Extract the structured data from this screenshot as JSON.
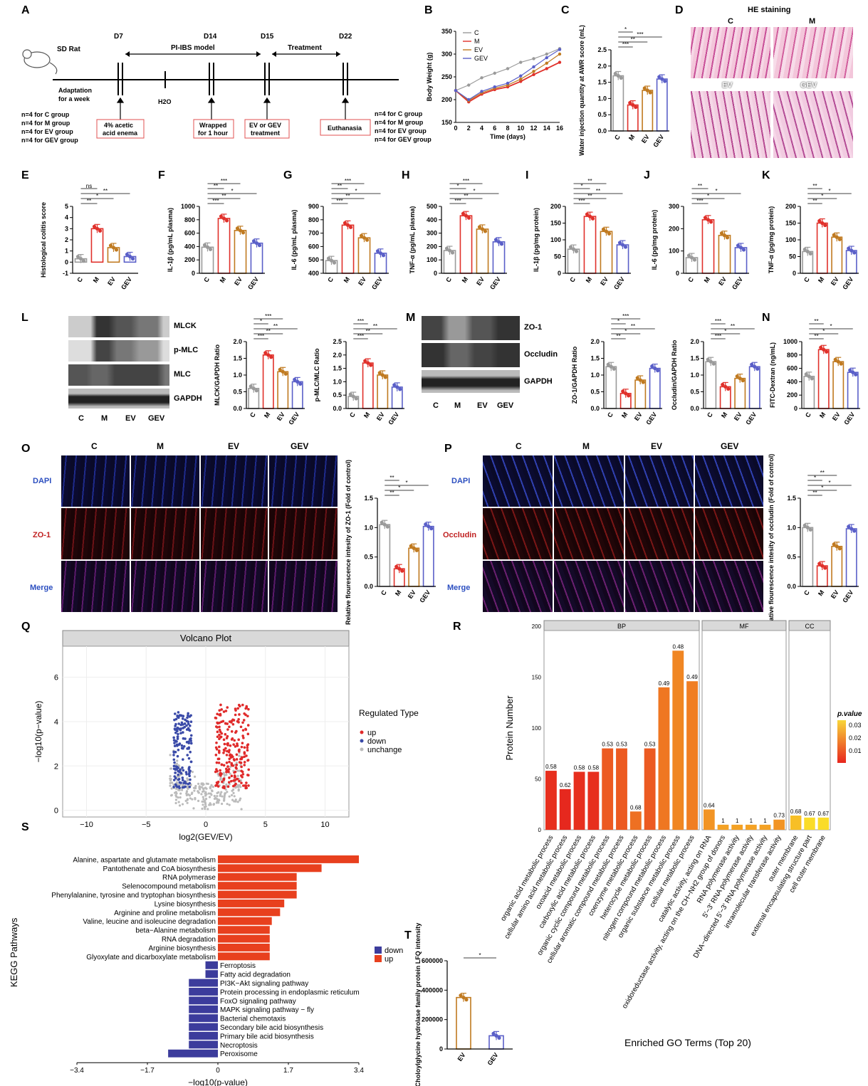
{
  "labels": {
    "A": "A",
    "B": "B",
    "C": "C",
    "D": "D",
    "E": "E",
    "F": "F",
    "G": "G",
    "H": "H",
    "I": "I",
    "J": "J",
    "K": "K",
    "L": "L",
    "M": "M",
    "N": "N",
    "O": "O",
    "P": "P",
    "Q": "Q",
    "R": "R",
    "S": "S",
    "T": "T"
  },
  "panelA": {
    "rat": "SD Rat",
    "d7": "D7",
    "d14": "D14",
    "d15": "D15",
    "d22": "D22",
    "model": "PI-IBS model",
    "treatment": "Treatment",
    "adapt1": "Adaptation",
    "adapt2": "for a week",
    "h2o": "H2O",
    "n1": "n=4 for C group",
    "n2": "n=4 for M group",
    "n3": "n=4 for EV group",
    "n4": "n=4 for GEV group",
    "box1a": "4% acetic",
    "box1b": "acid enema",
    "box2a": "Wrapped",
    "box2b": "for 1 hour",
    "box3a": "EV or GEV",
    "box3b": "treatment",
    "box4": "Euthanasia",
    "m1": "n=4 for C group",
    "m2": "n=4 for M group",
    "m3": "n=4 for EV group",
    "m4": "n=4 for GEV group"
  },
  "groups": [
    "C",
    "M",
    "EV",
    "GEV"
  ],
  "colors": {
    "C": "#9a9a9a",
    "M": "#e0302a",
    "EV": "#c07a20",
    "GEV": "#5a5fc8",
    "up": "#e8401e",
    "down": "#3c3c9c"
  },
  "panelB": {
    "ylabel": "Body Weight (g)",
    "xlabel": "Time (days)",
    "x": [
      0,
      2,
      4,
      6,
      8,
      10,
      12,
      14,
      16
    ],
    "yticks": [
      150,
      200,
      250,
      300,
      350
    ],
    "series": [
      {
        "name": "C",
        "values": [
          220,
          232,
          248,
          258,
          268,
          282,
          290,
          300,
          312
        ]
      },
      {
        "name": "M",
        "values": [
          220,
          195,
          212,
          222,
          228,
          240,
          255,
          268,
          282
        ]
      },
      {
        "name": "EV",
        "values": [
          220,
          198,
          215,
          225,
          232,
          245,
          262,
          280,
          300
        ]
      },
      {
        "name": "GEV",
        "values": [
          220,
          200,
          218,
          228,
          236,
          252,
          272,
          292,
          310
        ]
      }
    ]
  },
  "chart_data": [
    {
      "type": "bar",
      "id": "C",
      "ylabel": "Water injection quantity at AWR score (mL)",
      "categories": [
        "C",
        "M",
        "EV",
        "GEV"
      ],
      "values": [
        1.7,
        0.8,
        1.25,
        1.6
      ],
      "ylim": [
        0,
        2.5
      ],
      "yticks": [
        "0.0",
        "0.5",
        "1.0",
        "1.5",
        "2.0",
        "2.5"
      ],
      "sig": [
        "***",
        "**",
        "***",
        "*"
      ]
    },
    {
      "type": "bar",
      "id": "E",
      "ylabel": "Histological colitis score",
      "categories": [
        "C",
        "M",
        "EV",
        "GEV"
      ],
      "values": [
        0.3,
        3.0,
        1.3,
        0.5
      ],
      "ylim": [
        -1,
        5
      ],
      "yticks": [
        "-1",
        "0",
        "1",
        "2",
        "3",
        "4",
        "5"
      ],
      "sig": [
        "**",
        "*",
        "**",
        "ns"
      ]
    },
    {
      "type": "bar",
      "id": "F",
      "ylabel": "IL-1β (pg/mL plasma)",
      "categories": [
        "C",
        "M",
        "EV",
        "GEV"
      ],
      "values": [
        390,
        820,
        640,
        450
      ],
      "ylim": [
        0,
        1000
      ],
      "yticks": [
        "0",
        "200",
        "400",
        "600",
        "800",
        "1000"
      ],
      "sig": [
        "***",
        "**",
        "*",
        "**",
        "***"
      ]
    },
    {
      "type": "bar",
      "id": "G",
      "ylabel": "IL-6 (pg/mL plasma)",
      "categories": [
        "C",
        "M",
        "EV",
        "GEV"
      ],
      "values": [
        495,
        760,
        665,
        550
      ],
      "ylim": [
        400,
        900
      ],
      "yticks": [
        "400",
        "500",
        "600",
        "700",
        "800",
        "900"
      ],
      "sig": [
        "***",
        "**",
        "*",
        "**",
        "***"
      ]
    },
    {
      "type": "bar",
      "id": "H",
      "ylabel": "TNF-α (pg/mL plasma)",
      "categories": [
        "C",
        "M",
        "EV",
        "GEV"
      ],
      "values": [
        170,
        430,
        330,
        235
      ],
      "ylim": [
        0,
        500
      ],
      "yticks": [
        "0",
        "100",
        "200",
        "300",
        "400",
        "500"
      ],
      "sig": [
        "***",
        "**",
        "*",
        "*",
        "***"
      ]
    },
    {
      "type": "bar",
      "id": "I",
      "ylabel": "IL-1β (pg/mg protein)",
      "categories": [
        "C",
        "M",
        "EV",
        "GEV"
      ],
      "values": [
        72,
        170,
        125,
        85
      ],
      "ylim": [
        0,
        200
      ],
      "yticks": [
        "0",
        "50",
        "100",
        "150",
        "200"
      ],
      "sig": [
        "***",
        "**",
        "**",
        "*",
        "**"
      ]
    },
    {
      "type": "bar",
      "id": "J",
      "ylabel": "IL-6 (pg/mg protein)",
      "categories": [
        "C",
        "M",
        "EV",
        "GEV"
      ],
      "values": [
        70,
        240,
        170,
        115
      ],
      "ylim": [
        0,
        300
      ],
      "yticks": [
        "0",
        "100",
        "200",
        "300"
      ],
      "sig": [
        "***",
        "*",
        "*",
        "**"
      ]
    },
    {
      "type": "bar",
      "id": "K",
      "ylabel": "TNF-α (pg/mg protein)",
      "categories": [
        "C",
        "M",
        "EV",
        "GEV"
      ],
      "values": [
        65,
        150,
        108,
        68
      ],
      "ylim": [
        0,
        200
      ],
      "yticks": [
        "0",
        "50",
        "100",
        "150",
        "200"
      ],
      "sig": [
        "**",
        "*",
        "*",
        "**"
      ]
    },
    {
      "type": "bar",
      "id": "L1",
      "ylabel": "MLCK/GAPDH Ratio",
      "categories": [
        "C",
        "M",
        "EV",
        "GEV"
      ],
      "values": [
        0.6,
        1.6,
        1.1,
        0.8
      ],
      "ylim": [
        0,
        2.0
      ],
      "yticks": [
        "0.0",
        "0.5",
        "1.0",
        "1.5",
        "2.0"
      ],
      "sig": [
        "***",
        "**",
        "**",
        "*",
        "***"
      ]
    },
    {
      "type": "bar",
      "id": "L2",
      "ylabel": "p-MLC/MLC Ratio",
      "categories": [
        "C",
        "M",
        "EV",
        "GEV"
      ],
      "values": [
        0.45,
        1.7,
        1.25,
        0.8
      ],
      "ylim": [
        0,
        2.5
      ],
      "yticks": [
        "0.0",
        "0.5",
        "1.0",
        "1.5",
        "2.0",
        "2.5"
      ],
      "sig": [
        "***",
        "**",
        "**",
        "***"
      ]
    },
    {
      "type": "bar",
      "id": "M1",
      "ylabel": "ZO-1/GAPDH Ratio",
      "categories": [
        "C",
        "M",
        "EV",
        "GEV"
      ],
      "values": [
        1.25,
        0.45,
        0.85,
        1.2
      ],
      "ylim": [
        0,
        2.0
      ],
      "yticks": [
        "0.0",
        "0.5",
        "1.0",
        "1.5",
        "2.0"
      ],
      "sig": [
        "**",
        "*",
        "**",
        "*",
        "***"
      ]
    },
    {
      "type": "bar",
      "id": "M2",
      "ylabel": "Occludin/GAPDH Ratio",
      "categories": [
        "C",
        "M",
        "EV",
        "GEV"
      ],
      "values": [
        1.4,
        0.65,
        0.9,
        1.25
      ],
      "ylim": [
        0,
        2.0
      ],
      "yticks": [
        "0.0",
        "0.5",
        "1.0",
        "1.5",
        "2.0"
      ],
      "sig": [
        "***",
        "*",
        "**",
        "***"
      ]
    },
    {
      "type": "bar",
      "id": "N",
      "ylabel": "FITC-Dextran (ng/mL)",
      "categories": [
        "C",
        "M",
        "EV",
        "GEV"
      ],
      "values": [
        480,
        880,
        700,
        540
      ],
      "ylim": [
        0,
        1000
      ],
      "yticks": [
        "0",
        "200",
        "400",
        "600",
        "800",
        "1000"
      ],
      "sig": [
        "**",
        "*",
        "*",
        "**"
      ]
    },
    {
      "type": "bar",
      "id": "O",
      "ylabel": "Relative flourescence intesity of ZO-1 (Fold of control)",
      "categories": [
        "C",
        "M",
        "EV",
        "GEV"
      ],
      "values": [
        1.05,
        0.3,
        0.65,
        1.02
      ],
      "ylim": [
        0,
        1.5
      ],
      "yticks": [
        "0.0",
        "0.5",
        "1.0",
        "1.5"
      ],
      "sig": [
        "**",
        "*",
        "*",
        "**"
      ]
    },
    {
      "type": "bar",
      "id": "P",
      "ylabel": "Relative flourescence intesity of occludin (Fold of control)",
      "categories": [
        "C",
        "M",
        "EV",
        "GEV"
      ],
      "values": [
        1.0,
        0.35,
        0.68,
        0.98
      ],
      "ylim": [
        0,
        1.5
      ],
      "yticks": [
        "0.0",
        "0.5",
        "1.0",
        "1.5"
      ],
      "sig": [
        "**",
        "*",
        "*",
        "*",
        "**"
      ]
    },
    {
      "type": "bar",
      "id": "T",
      "ylabel": "Choloylglycine hydrolase family protein LFQ intensity",
      "categories": [
        "EV",
        "GEV"
      ],
      "values": [
        350000,
        90000
      ],
      "ylim": [
        0,
        600000
      ],
      "yticks": [
        "0",
        "200000",
        "400000",
        "600000"
      ],
      "sig": [
        "*"
      ]
    },
    {
      "type": "bar",
      "id": "R",
      "title": "Enriched GO Terms (Top 20)",
      "ylabel": "Protein Number",
      "facets": [
        "BP",
        "MF",
        "CC"
      ],
      "categories": [
        "organic acid metabolic process",
        "cellular amino acid metabolic process",
        "oxoacid metabolic process",
        "carboxylic acid metabolic process",
        "organic cyclic compound metabolic process",
        "cellular aromatic compound metabolic process",
        "coenzyme metabolic process",
        "heterocycle metabolic process",
        "nitrogen compound metabolic process",
        "organic substance metabolic process",
        "cellular metabolic process",
        "catalytic activity, acting on RNA",
        "oxidoreductase activity, acting on the CH−NH2 group of donors",
        "RNA polymerase activity",
        "5'−3' RNA polymerase activity",
        "DNA−directed 5'−3' RNA polymerase activity",
        "intramolecular transferase activity",
        "outer membrane",
        "external encapsulating structure part",
        "cell outer membrane"
      ],
      "values": [
        58,
        40,
        57,
        57,
        80,
        80,
        18,
        80,
        140,
        176,
        146,
        20,
        5,
        5,
        5,
        5,
        10,
        14,
        12,
        12
      ],
      "labels": [
        "0.58",
        "0.62",
        "0.58",
        "0.58",
        "0.53",
        "0.53",
        "0.68",
        "0.53",
        "0.49",
        "0.48",
        "0.49",
        "0.64",
        "1",
        "1",
        "1",
        "1",
        "0.73",
        "0.68",
        "0.67",
        "0.67"
      ],
      "pvalue": [
        0.006,
        0.005,
        0.006,
        0.006,
        0.012,
        0.012,
        0.015,
        0.012,
        0.016,
        0.018,
        0.017,
        0.02,
        0.022,
        0.022,
        0.022,
        0.022,
        0.02,
        0.026,
        0.03,
        0.03
      ],
      "yticks": [
        "0",
        "50",
        "100",
        "150",
        "200"
      ],
      "legend_title": "p.value",
      "legend_ticks": [
        "0.03",
        "0.02",
        "0.01"
      ]
    },
    {
      "type": "bar",
      "id": "S",
      "orientation": "horizontal",
      "ylabel": "KEGG Pathways",
      "xlabel": "−log10(p-value)",
      "xticks": [
        "−3.4",
        "−1.7",
        "0",
        "1.7",
        "3.4"
      ],
      "categories": [
        "Alanine, aspartate and glutamate metabolism",
        "Pantothenate and CoA biosynthesis",
        "RNA polymerase",
        "Selenocompound metabolism",
        "Phenylalanine, tyrosine and tryptophan biosynthesis",
        "Lysine biosynthesis",
        "Arginine and proline metabolism",
        "Valine, leucine and isoleucine degradation",
        "beta−Alanine metabolism",
        "RNA degradation",
        "Arginine biosynthesis",
        "Glyoxylate and dicarboxylate metabolism",
        "Ferroptosis",
        "Fatty acid degradation",
        "PI3K−Akt signaling pathway",
        "Protein processing in endoplasmic reticulum",
        "FoxO signaling pathway",
        "MAPK signaling pathway − fly",
        "Bacterial chemotaxis",
        "Secondary bile acid biosynthesis",
        "Primary bile acid biosynthesis",
        "Necroptosis",
        "Peroxisome"
      ],
      "values": [
        3.4,
        2.5,
        1.9,
        1.9,
        1.9,
        1.6,
        1.5,
        1.3,
        1.25,
        1.25,
        1.25,
        1.25,
        -0.3,
        -0.3,
        -0.7,
        -0.7,
        -0.7,
        -0.7,
        -0.7,
        -0.7,
        -0.7,
        -0.7,
        -1.2
      ],
      "legend": [
        "down",
        "up"
      ]
    },
    {
      "type": "scatter",
      "id": "Q",
      "title": "Volcano Plot",
      "xlabel": "log2(GEV/EV)",
      "ylabel": "−log10(p−value)",
      "xlim": [
        -12,
        12
      ],
      "ylim": [
        -0.3,
        7.4
      ],
      "xticks": [
        "−10",
        "−5",
        "0",
        "5",
        "10"
      ],
      "yticks": [
        "0",
        "2",
        "4",
        "6"
      ],
      "legend_title": "Regulated Type",
      "legend": [
        "up",
        "down",
        "unchange"
      ]
    }
  ],
  "panelD": {
    "title": "HE staining",
    "c": "C",
    "m": "M",
    "ev": "EV",
    "gev": "GEV"
  },
  "westernL": {
    "rows": [
      "MLCK",
      "p-MLC",
      "MLC",
      "GAPDH"
    ],
    "cols": [
      "C",
      "M",
      "EV",
      "GEV"
    ]
  },
  "westernM": {
    "rows": [
      "ZO-1",
      "Occludin",
      "GAPDH"
    ],
    "cols": [
      "C",
      "M",
      "EV",
      "GEV"
    ]
  },
  "panelO": {
    "cols": [
      "C",
      "M",
      "EV",
      "GEV"
    ],
    "rows": [
      "DAPI",
      "ZO-1",
      "Merge"
    ]
  },
  "panelP": {
    "cols": [
      "C",
      "M",
      "EV",
      "GEV"
    ],
    "rows": [
      "DAPI",
      "Occludin",
      "Merge"
    ]
  }
}
